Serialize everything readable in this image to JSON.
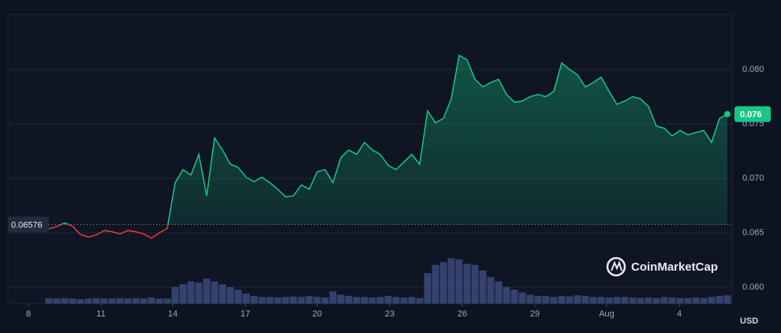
{
  "chart_data": {
    "type": "line",
    "values": [
      0.06536,
      0.06557,
      0.0659,
      0.0656,
      0.06485,
      0.0646,
      0.0648,
      0.0652,
      0.0651,
      0.0649,
      0.0652,
      0.0651,
      0.0649,
      0.0645,
      0.065,
      0.0654,
      0.0696,
      0.0708,
      0.0703,
      0.0722,
      0.0684,
      0.0737,
      0.0726,
      0.0713,
      0.071,
      0.0701,
      0.0697,
      0.0701,
      0.0696,
      0.069,
      0.0683,
      0.0684,
      0.0694,
      0.069,
      0.0706,
      0.0708,
      0.0696,
      0.0719,
      0.0726,
      0.0722,
      0.0733,
      0.0726,
      0.0722,
      0.0712,
      0.0708,
      0.0715,
      0.0722,
      0.0713,
      0.0762,
      0.0751,
      0.0755,
      0.0773,
      0.0813,
      0.0809,
      0.0791,
      0.0784,
      0.0788,
      0.0791,
      0.0777,
      0.077,
      0.0771,
      0.0775,
      0.0777,
      0.0775,
      0.078,
      0.0806,
      0.08,
      0.0795,
      0.0784,
      0.0788,
      0.0793,
      0.078,
      0.0768,
      0.0771,
      0.0775,
      0.0773,
      0.0766,
      0.0748,
      0.0746,
      0.0739,
      0.0744,
      0.074,
      0.0742,
      0.0744,
      0.0733,
      0.0755,
      0.0759
    ],
    "volume": [
      10,
      9,
      10,
      9,
      8,
      9,
      10,
      9,
      9,
      10,
      9,
      10,
      9,
      11,
      9,
      9,
      30,
      35,
      40,
      38,
      45,
      40,
      35,
      30,
      25,
      18,
      14,
      12,
      12,
      11,
      12,
      13,
      12,
      14,
      12,
      11,
      22,
      16,
      14,
      12,
      12,
      11,
      12,
      14,
      12,
      11,
      12,
      10,
      55,
      70,
      75,
      82,
      80,
      72,
      70,
      60,
      48,
      40,
      30,
      25,
      20,
      16,
      14,
      14,
      12,
      14,
      13,
      15,
      14,
      12,
      12,
      11,
      12,
      12,
      11,
      10,
      11,
      10,
      12,
      11,
      10,
      10,
      11,
      10,
      12,
      14,
      15
    ],
    "volume_ylim": [
      0,
      100
    ],
    "up_color": "#16c784",
    "down_color": "#ea3943",
    "volume_color": "#3c4a7d",
    "baseline": {
      "value": 0.06576,
      "label": "0.06576"
    },
    "current_price_label": "0.076",
    "xlim": [
      -5.2,
      86.6
    ],
    "xticks": [
      {
        "value": -2.6,
        "label": "8"
      },
      {
        "value": 6.6,
        "label": "11"
      },
      {
        "value": 15.7,
        "label": "14"
      },
      {
        "value": 24.9,
        "label": "17"
      },
      {
        "value": 34,
        "label": "20"
      },
      {
        "value": 43.2,
        "label": "23"
      },
      {
        "value": 52.4,
        "label": "26"
      },
      {
        "value": 61.6,
        "label": "29"
      },
      {
        "value": 70.7,
        "label": "Aug"
      },
      {
        "value": 79.9,
        "label": "4"
      }
    ],
    "ylim": [
      0.0585,
      0.085
    ],
    "yticks": [
      {
        "value": 0.06,
        "label": "0.060"
      },
      {
        "value": 0.065,
        "label": "0.065"
      },
      {
        "value": 0.07,
        "label": "0.070"
      },
      {
        "value": 0.075,
        "label": "0.075"
      },
      {
        "value": 0.08,
        "label": "0.080"
      }
    ],
    "y_unit": "USD",
    "grid": true,
    "watermark": "CoinMarketCap"
  }
}
